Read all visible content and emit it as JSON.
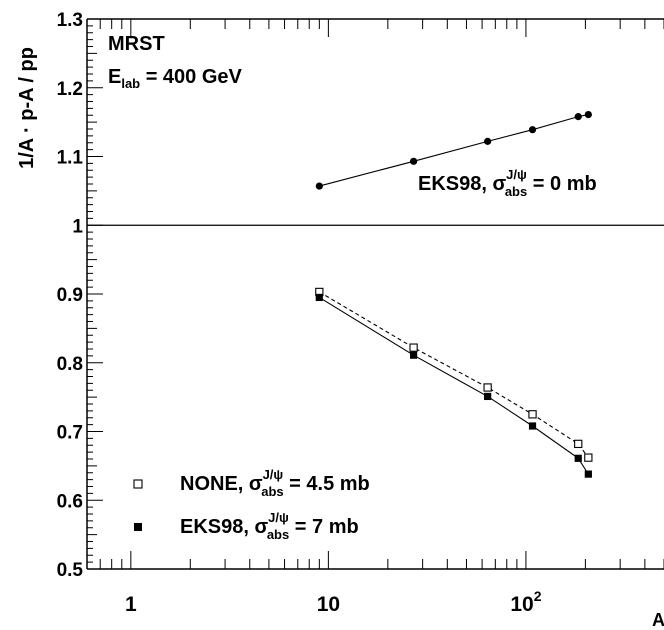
{
  "chart_data": {
    "type": "scatter",
    "ylabel": "1/A · p-A / pp",
    "xlabel": "A",
    "x_scale": "log",
    "xlim": [
      0.6,
      500
    ],
    "ylim": [
      0.5,
      1.3
    ],
    "grid": false,
    "legend_position": "bottom-left",
    "x_ticks": [
      {
        "value": 1,
        "label": "1"
      },
      {
        "value": 10,
        "label": "10"
      },
      {
        "value": 100,
        "label": "10",
        "exponent": "2"
      }
    ],
    "y_ticks": [
      {
        "value": 0.5,
        "label": "0.5"
      },
      {
        "value": 0.6,
        "label": "0.6"
      },
      {
        "value": 0.7,
        "label": "0.7"
      },
      {
        "value": 0.8,
        "label": "0.8"
      },
      {
        "value": 0.9,
        "label": "0.9"
      },
      {
        "value": 1.0,
        "label": "1"
      },
      {
        "value": 1.1,
        "label": "1.1"
      },
      {
        "value": 1.2,
        "label": "1.2"
      },
      {
        "value": 1.3,
        "label": "1.3"
      }
    ],
    "reference_line_y": 1.0,
    "annotations": {
      "pdf": "MRST",
      "energy_prefix": "E",
      "energy_sub": "lab",
      "energy_suffix": " = 400 GeV",
      "eks_label": {
        "text": "EKS98, σ",
        "sup": "J/ψ",
        "sub": "abs",
        "suffix": " = 0 mb"
      }
    },
    "series": [
      {
        "name": "EKS98, σ_abs^{J/ψ} = 0 mb",
        "marker": "filled-circle",
        "line": "solid",
        "legend": null,
        "x": [
          9,
          27,
          64,
          108,
          184,
          207
        ],
        "y": [
          1.057,
          1.093,
          1.122,
          1.139,
          1.158,
          1.161
        ]
      },
      {
        "name": "NONE, σ_abs^{J/ψ} = 4.5 mb",
        "marker": "open-square",
        "line": "dashed",
        "legend": {
          "text": "NONE, σ",
          "sup": "J/ψ",
          "sub": "abs",
          "suffix": " = 4.5 mb"
        },
        "x": [
          9,
          27,
          64,
          108,
          184,
          207
        ],
        "y": [
          0.903,
          0.822,
          0.764,
          0.725,
          0.682,
          0.662
        ]
      },
      {
        "name": "EKS98, σ_abs^{J/ψ} = 7 mb",
        "marker": "filled-square",
        "line": "solid",
        "legend": {
          "text": "EKS98, σ",
          "sup": "J/ψ",
          "sub": "abs",
          "suffix": " = 7 mb"
        },
        "x": [
          9,
          27,
          64,
          108,
          184,
          207
        ],
        "y": [
          0.895,
          0.811,
          0.751,
          0.708,
          0.661,
          0.638
        ]
      }
    ]
  }
}
